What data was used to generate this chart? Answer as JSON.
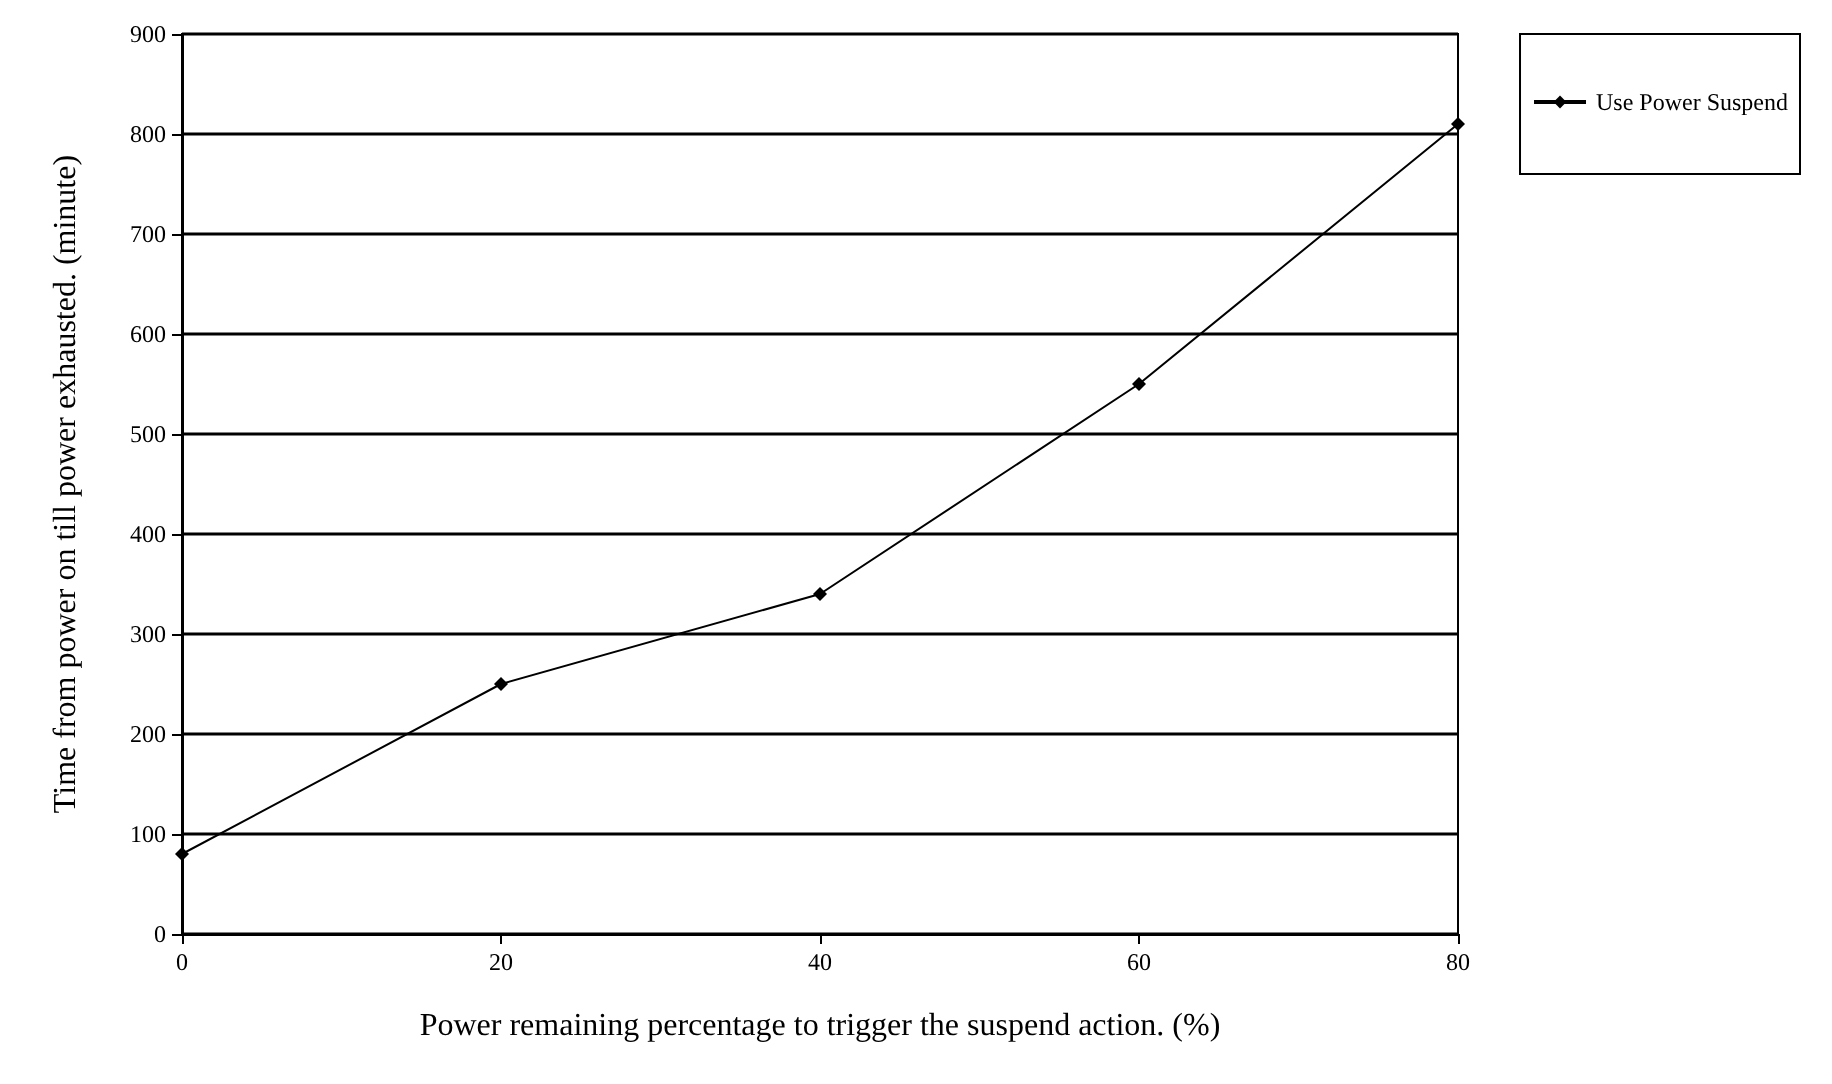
{
  "chart_data": {
    "type": "line",
    "xlabel": "Power remaining percentage to trigger the suspend action. (%)",
    "ylabel": "Time from power on till power exhausted. (minute)",
    "x": [
      0,
      20,
      40,
      60,
      80
    ],
    "series": [
      {
        "name": "Use Power Suspend",
        "color": "#000000",
        "values": [
          80,
          250,
          340,
          550,
          810
        ]
      }
    ],
    "xlim": [
      0,
      80
    ],
    "xticks": [
      0,
      20,
      40,
      60,
      80
    ],
    "ylim": [
      0,
      900
    ],
    "yticks": [
      0,
      100,
      200,
      300,
      400,
      500,
      600,
      700,
      800,
      900
    ],
    "grid": "y",
    "legend": "top right",
    "marker": "diamond",
    "line_style": "solid"
  }
}
